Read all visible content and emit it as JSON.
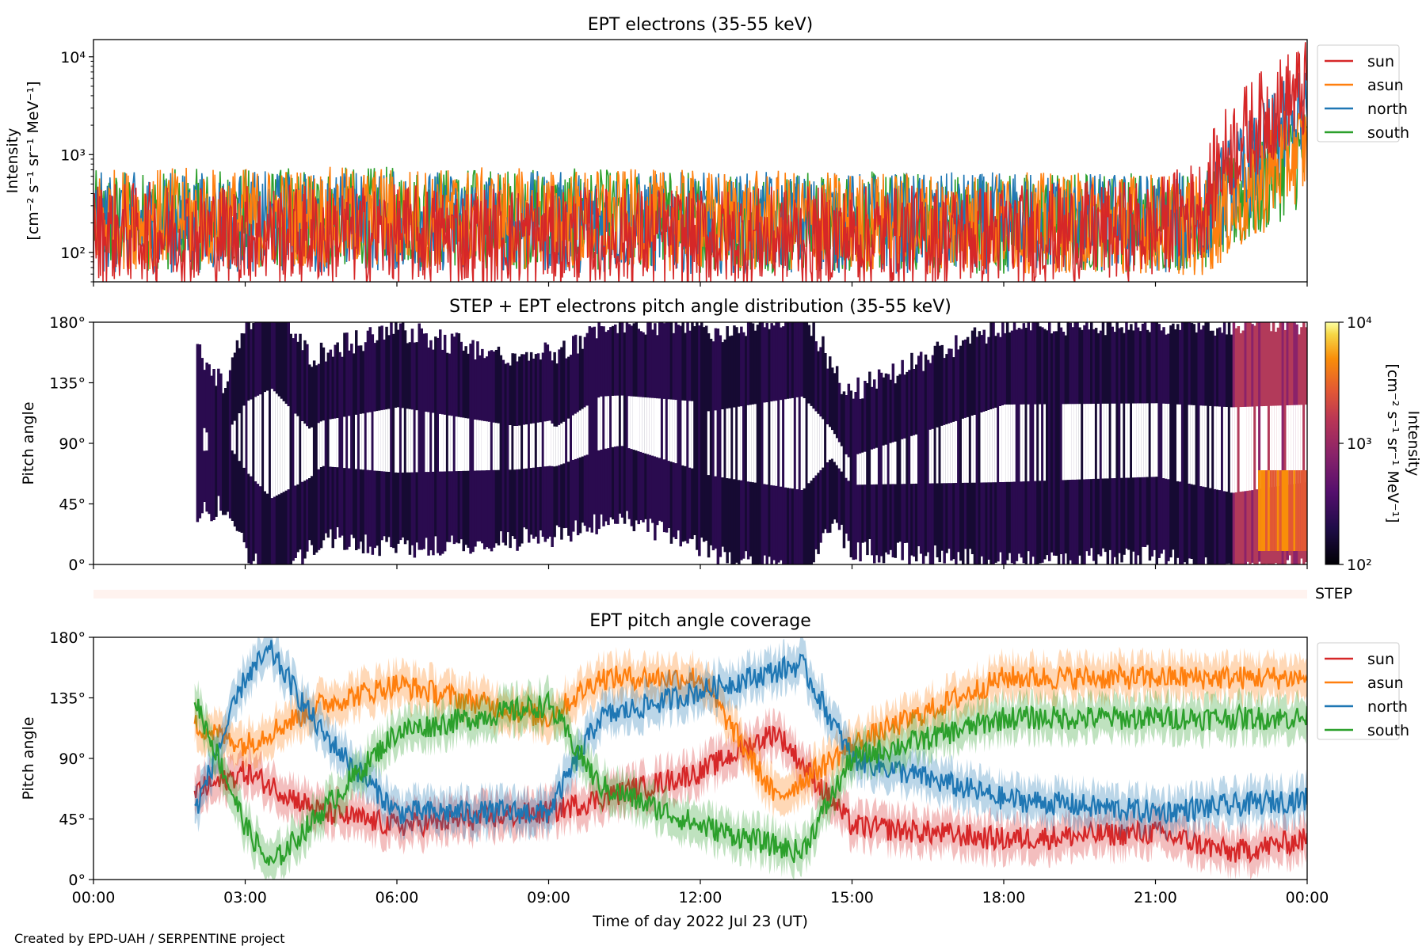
{
  "footer": {
    "credit": "Created by EPD-UAH / SERPENTINE project"
  },
  "colors": {
    "sun": "#d62728",
    "asun": "#ff7f0e",
    "north": "#1f77b4",
    "south": "#2ca02c"
  },
  "chart_data": [
    {
      "type": "line",
      "title": "EPT electrons (35-55 keV)",
      "ylabel": "Intensity",
      "ylabel_units": "[cm⁻² s⁻¹ sr⁻¹ MeV⁻¹]",
      "yscale": "log",
      "ylim": [
        50,
        15000
      ],
      "ytick_labels": [
        "10²",
        "10³",
        "10⁴"
      ],
      "xlim": [
        "2022-07-23 00:00",
        "2022-07-24 00:00"
      ],
      "legend_position": "upper-right-outside",
      "series": [
        {
          "name": "sun",
          "x_hours": [
            0,
            6,
            12,
            18,
            21,
            22,
            23,
            24
          ],
          "values": [
            160,
            150,
            140,
            150,
            170,
            300,
            2000,
            4500
          ]
        },
        {
          "name": "asun",
          "x_hours": [
            0,
            6,
            12,
            18,
            21,
            22,
            23,
            24
          ],
          "values": [
            220,
            230,
            210,
            200,
            200,
            180,
            400,
            1200
          ]
        },
        {
          "name": "north",
          "x_hours": [
            0,
            6,
            12,
            18,
            21,
            22,
            23,
            24
          ],
          "values": [
            200,
            210,
            200,
            200,
            200,
            200,
            800,
            2500
          ]
        },
        {
          "name": "south",
          "x_hours": [
            0,
            6,
            12,
            18,
            21,
            22,
            23,
            24
          ],
          "values": [
            210,
            230,
            210,
            200,
            210,
            210,
            400,
            1000
          ]
        }
      ]
    },
    {
      "type": "heatmap",
      "title": "STEP + EPT electrons pitch angle distribution (35-55 keV)",
      "ylabel": "Pitch angle",
      "ylim": [
        0,
        180
      ],
      "ytick_labels": [
        "0°",
        "45°",
        "90°",
        "135°",
        "180°"
      ],
      "colorbar": {
        "label": "Intensity",
        "units": "[cm⁻² s⁻¹ sr⁻¹ MeV⁻¹]",
        "scale": "log",
        "range": [
          100,
          10000
        ],
        "tick_labels": [
          "10²",
          "10³",
          "10⁴"
        ],
        "colormap": "inferno"
      },
      "step_label": "STEP"
    },
    {
      "type": "line",
      "title": "EPT pitch angle coverage",
      "ylabel": "Pitch angle",
      "xlabel": "Time of day 2022 Jul 23 (UT)",
      "ylim": [
        0,
        180
      ],
      "ytick_labels": [
        "0°",
        "45°",
        "90°",
        "135°",
        "180°"
      ],
      "xtick_labels": [
        "00:00",
        "03:00",
        "06:00",
        "09:00",
        "12:00",
        "15:00",
        "18:00",
        "21:00",
        "00:00"
      ],
      "legend_position": "upper-right-outside",
      "series": [
        {
          "name": "sun",
          "x_hours": [
            2.0,
            3.0,
            4.5,
            6.0,
            9.0,
            10.0,
            12.0,
            13.5,
            15.0,
            18.0,
            21.0,
            22.5,
            24.0
          ],
          "values": [
            65,
            80,
            50,
            40,
            50,
            60,
            80,
            110,
            40,
            30,
            35,
            20,
            30
          ]
        },
        {
          "name": "asun",
          "x_hours": [
            2.0,
            3.0,
            4.5,
            6.0,
            9.0,
            10.0,
            12.0,
            13.5,
            15.0,
            18.0,
            21.0,
            22.5,
            24.0
          ],
          "values": [
            115,
            100,
            130,
            145,
            120,
            150,
            150,
            60,
            100,
            150,
            150,
            150,
            150
          ]
        },
        {
          "name": "north",
          "x_hours": [
            2.0,
            3.0,
            3.5,
            4.5,
            6.0,
            9.0,
            10.0,
            12.0,
            14.0,
            15.0,
            18.0,
            21.0,
            24.0
          ],
          "values": [
            50,
            150,
            170,
            110,
            50,
            50,
            120,
            140,
            160,
            90,
            60,
            50,
            60
          ]
        },
        {
          "name": "south",
          "x_hours": [
            2.0,
            3.0,
            3.5,
            4.5,
            6.0,
            9.0,
            10.0,
            12.0,
            14.0,
            15.0,
            18.0,
            21.0,
            24.0
          ],
          "values": [
            135,
            40,
            10,
            50,
            110,
            130,
            70,
            40,
            20,
            90,
            120,
            120,
            120
          ]
        }
      ]
    }
  ]
}
